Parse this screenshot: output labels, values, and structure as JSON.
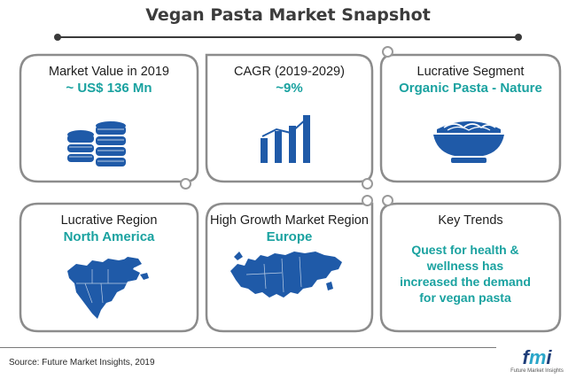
{
  "header": {
    "title": "Vegan Pasta Market Snapshot"
  },
  "cards": [
    {
      "heading": "Market Value in 2019",
      "value": "~ US$ 136 Mn",
      "icon": "coin-stack-icon"
    },
    {
      "heading": "CAGR (2019-2029)",
      "value": "~9%",
      "icon": "bar-chart-icon"
    },
    {
      "heading": "Lucrative Segment",
      "value": "Organic Pasta - Nature",
      "icon": "pasta-bowl-icon"
    },
    {
      "heading": "Lucrative Region",
      "value": "North America",
      "icon": "north-america-map-icon"
    },
    {
      "heading": "High Growth Market Region",
      "value": "Europe",
      "icon": "europe-map-icon"
    },
    {
      "heading": "Key Trends",
      "value": "Quest for health & wellness has increased the demand for vegan pasta",
      "icon": ""
    }
  ],
  "footer": {
    "source": "Source: Future Market Insights, 2019",
    "logo_text": "fmi",
    "logo_subtitle": "Future Market Insights"
  },
  "colors": {
    "accent": "#1aa2a0",
    "icon_blue": "#1f5aa8",
    "frame_gray": "#8c8c8c"
  }
}
